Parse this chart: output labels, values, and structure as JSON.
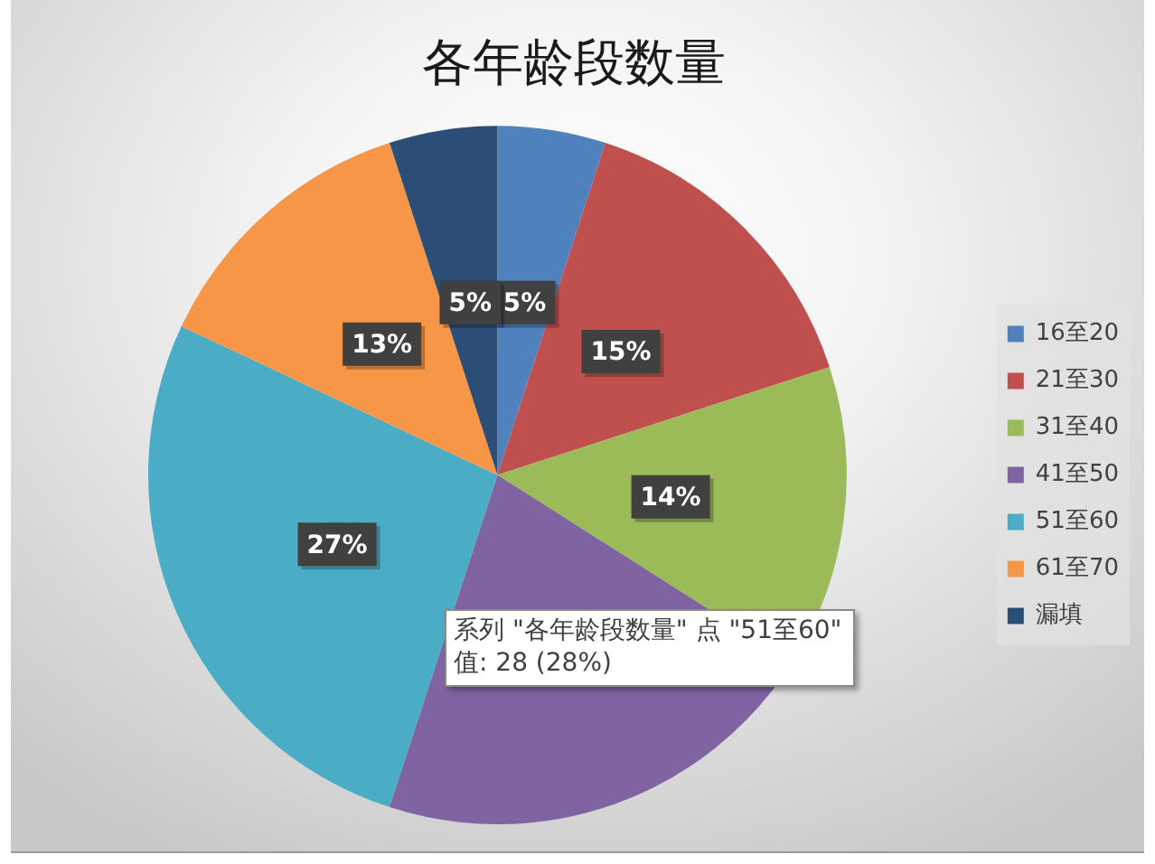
{
  "chart_data": {
    "type": "pie",
    "title": "各年龄段数量",
    "categories": [
      "16至20",
      "21至30",
      "31至40",
      "41至50",
      "51至60",
      "61至70",
      "漏填"
    ],
    "values": [
      5,
      15,
      14,
      21,
      27,
      13,
      5
    ],
    "colors": [
      "#4f81bd",
      "#c0504d",
      "#9bbb59",
      "#8064a2",
      "#4bacc6",
      "#f79646",
      "#2c4d75"
    ],
    "value_labels": [
      "5%",
      "15%",
      "14%",
      null,
      "27%",
      "13%",
      "5%"
    ],
    "legend": "right",
    "annotations": [
      "系列 \"各年龄段数量\" 点 \"51至60\"",
      "值: 28 (28%)"
    ]
  }
}
